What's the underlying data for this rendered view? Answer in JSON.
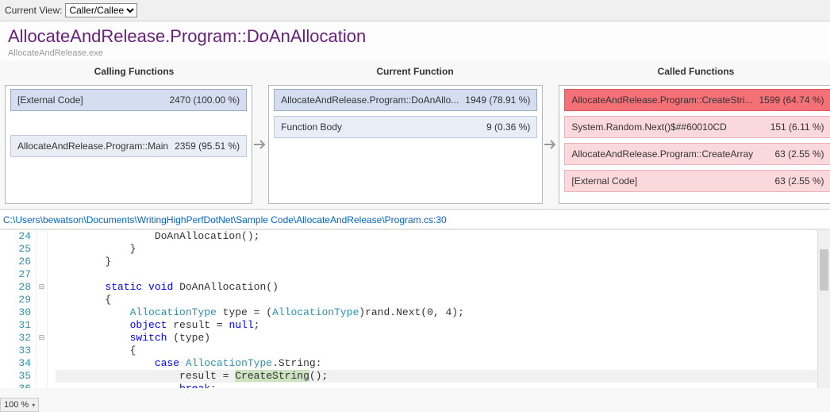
{
  "toolbar": {
    "view_label": "Current View:",
    "view_options": [
      "Caller/Callee"
    ],
    "view_selected": "Caller/Callee"
  },
  "header": {
    "title": "AllocateAndRelease.Program::DoAnAllocation",
    "subtitle": "AllocateAndRelease.exe"
  },
  "columns": {
    "calling": {
      "title": "Calling Functions",
      "rows": [
        {
          "label": "[External Code]",
          "value": "2470 (100.00 %)",
          "style": "blue-box"
        },
        {
          "label": "AllocateAndRelease.Program::Main",
          "value": "2359 (95.51 %)",
          "style": "blue-light"
        }
      ]
    },
    "current": {
      "title": "Current Function",
      "rows": [
        {
          "label": "AllocateAndRelease.Program::DoAnAllo...",
          "value": "1949 (78.91 %)",
          "style": "blue-box"
        },
        {
          "label": "Function Body",
          "value": "9 (0.36 %)",
          "style": "blue-light"
        }
      ]
    },
    "called": {
      "title": "Called Functions",
      "rows": [
        {
          "label": "AllocateAndRelease.Program::CreateStri...",
          "value": "1599 (64.74 %)",
          "style": "red-strong"
        },
        {
          "label": "System.Random.Next()$##60010CD",
          "value": "151 (6.11 %)",
          "style": "red-light"
        },
        {
          "label": "AllocateAndRelease.Program::CreateArray",
          "value": "63 (2.55 %)",
          "style": "red-light"
        },
        {
          "label": "[External Code]",
          "value": "63 (2.55 %)",
          "style": "red-light"
        }
      ]
    }
  },
  "source": {
    "path": "C:\\Users\\bewatson\\Documents\\WritingHighPerfDotNet\\Sample Code\\AllocateAndRelease\\Program.cs:30",
    "first_line": 24,
    "outline_markers": {
      "28": "⊟",
      "32": "⊟"
    },
    "highlight_line": 35,
    "lines": [
      "                DoAnAllocation();",
      "            }",
      "        }",
      "",
      "        static void DoAnAllocation()",
      "        {",
      "            AllocationType type = (AllocationType)rand.Next(0, 4);",
      "            object result = null;",
      "            switch (type)",
      "            {",
      "                case AllocationType.String:",
      "                    result = CreateString();",
      "                    break;"
    ],
    "tokens": {
      "keywords": [
        "static",
        "void",
        "object",
        "null",
        "switch",
        "case",
        "break"
      ],
      "types": [
        "AllocationType"
      ]
    },
    "highlight_selection": "CreateString"
  },
  "footer": {
    "zoom": "100 %"
  },
  "colors": {
    "accent": "#68217a",
    "link": "#0066cc",
    "keyword": "#0000ff",
    "type": "#2b91af"
  }
}
